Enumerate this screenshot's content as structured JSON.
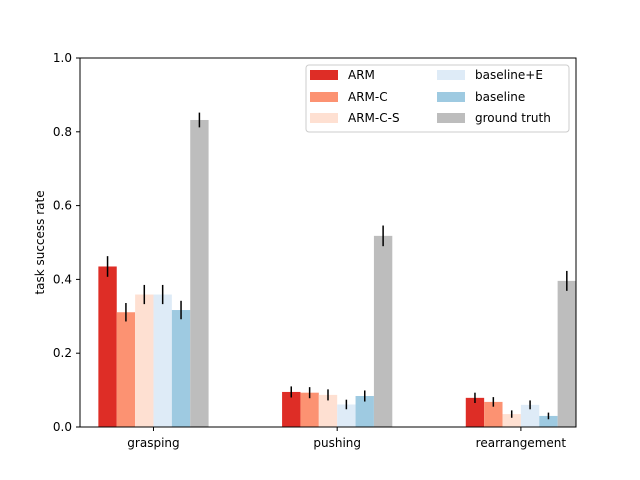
{
  "chart_data": {
    "type": "bar",
    "title": "",
    "xlabel": "",
    "ylabel": "task success rate",
    "ylim": [
      0,
      1.0
    ],
    "yticks": [
      "0.0",
      "0.2",
      "0.4",
      "0.6",
      "0.8",
      "1.0"
    ],
    "ytick_values": [
      0,
      0.2,
      0.4,
      0.6,
      0.8,
      1.0
    ],
    "categories": [
      "grasping",
      "pushing",
      "rearrangement"
    ],
    "legend_position": "top-right",
    "legend_columns": 2,
    "series": [
      {
        "name": "ARM",
        "color": "#de2d26",
        "values": [
          0.435,
          0.095,
          0.079
        ],
        "errors": [
          0.028,
          0.015,
          0.014
        ]
      },
      {
        "name": "ARM-C",
        "color": "#fc9272",
        "values": [
          0.311,
          0.093,
          0.068
        ],
        "errors": [
          0.025,
          0.015,
          0.013
        ]
      },
      {
        "name": "ARM-C-S",
        "color": "#fee0d2",
        "values": [
          0.359,
          0.087,
          0.035
        ],
        "errors": [
          0.026,
          0.015,
          0.01
        ]
      },
      {
        "name": "baseline+E",
        "color": "#deebf7",
        "values": [
          0.359,
          0.061,
          0.06
        ],
        "errors": [
          0.026,
          0.013,
          0.012
        ]
      },
      {
        "name": "baseline",
        "color": "#9ecae1",
        "values": [
          0.317,
          0.084,
          0.03
        ],
        "errors": [
          0.025,
          0.015,
          0.009
        ]
      },
      {
        "name": "ground truth",
        "color": "#bdbdbd",
        "values": [
          0.832,
          0.518,
          0.396
        ],
        "errors": [
          0.02,
          0.028,
          0.027
        ]
      }
    ]
  }
}
